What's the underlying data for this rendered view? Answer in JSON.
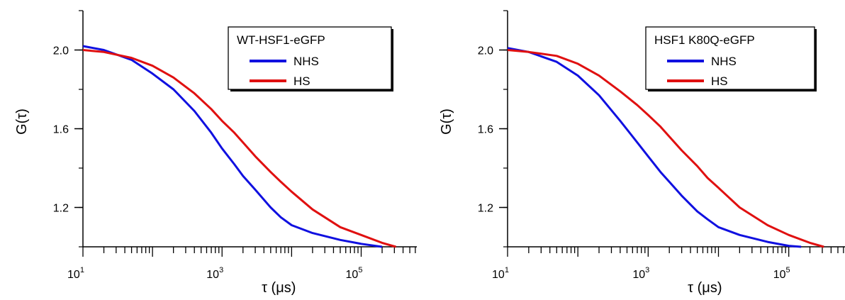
{
  "chart_data": [
    {
      "type": "line",
      "xscale": "log",
      "ylabel": "G(τ)",
      "xlabel": "τ (μs)",
      "xlim": [
        10,
        631000
      ],
      "ylim": [
        1.0,
        2.2
      ],
      "yticks": [
        1.2,
        1.6,
        2.0
      ],
      "xticks": [
        10,
        1000,
        100000
      ],
      "xtick_labels": [
        {
          "base": "10",
          "exp": "1"
        },
        {
          "base": "10",
          "exp": "3"
        },
        {
          "base": "10",
          "exp": "5"
        }
      ],
      "legend": {
        "title": "WT-HSF1-eGFP",
        "position": "top-right"
      },
      "series": [
        {
          "name": "NHS",
          "color": "#1010e0",
          "x": [
            10,
            20,
            50,
            100,
            200,
            400,
            700,
            1000,
            1500,
            2000,
            3000,
            5000,
            7000,
            10000,
            20000,
            50000,
            100000,
            200000
          ],
          "y": [
            2.02,
            2.0,
            1.95,
            1.88,
            1.8,
            1.69,
            1.58,
            1.5,
            1.42,
            1.36,
            1.29,
            1.2,
            1.15,
            1.11,
            1.07,
            1.035,
            1.015,
            1.0
          ]
        },
        {
          "name": "HS",
          "color": "#e01010",
          "x": [
            10,
            20,
            50,
            100,
            200,
            400,
            700,
            1000,
            1500,
            2000,
            3000,
            5000,
            7000,
            10000,
            20000,
            50000,
            100000,
            200000,
            316000
          ],
          "y": [
            2.0,
            1.99,
            1.96,
            1.92,
            1.86,
            1.78,
            1.7,
            1.64,
            1.58,
            1.53,
            1.46,
            1.38,
            1.33,
            1.28,
            1.19,
            1.1,
            1.06,
            1.02,
            1.0
          ]
        }
      ]
    },
    {
      "type": "line",
      "xscale": "log",
      "ylabel": "G(τ)",
      "xlabel": "τ (μs)",
      "xlim": [
        10,
        631000
      ],
      "ylim": [
        1.0,
        2.2
      ],
      "yticks": [
        1.2,
        1.6,
        2.0
      ],
      "xticks": [
        10,
        1000,
        100000
      ],
      "xtick_labels": [
        {
          "base": "10",
          "exp": "1"
        },
        {
          "base": "10",
          "exp": "3"
        },
        {
          "base": "10",
          "exp": "5"
        }
      ],
      "legend": {
        "title": "HSF1 K80Q-eGFP",
        "position": "top-right"
      },
      "series": [
        {
          "name": "NHS",
          "color": "#1010e0",
          "x": [
            10,
            20,
            50,
            100,
            200,
            400,
            700,
            1000,
            1500,
            2000,
            3000,
            5000,
            7000,
            10000,
            20000,
            50000,
            100000,
            150000
          ],
          "y": [
            2.01,
            1.99,
            1.94,
            1.87,
            1.77,
            1.64,
            1.53,
            1.46,
            1.38,
            1.33,
            1.26,
            1.18,
            1.14,
            1.1,
            1.06,
            1.025,
            1.005,
            1.0
          ]
        },
        {
          "name": "HS",
          "color": "#e01010",
          "x": [
            10,
            20,
            50,
            100,
            200,
            400,
            700,
            1000,
            1500,
            2000,
            3000,
            5000,
            7000,
            10000,
            20000,
            50000,
            100000,
            200000,
            316000
          ],
          "y": [
            2.0,
            1.99,
            1.97,
            1.93,
            1.87,
            1.79,
            1.72,
            1.67,
            1.61,
            1.56,
            1.49,
            1.41,
            1.35,
            1.3,
            1.2,
            1.11,
            1.06,
            1.02,
            1.0
          ]
        }
      ]
    }
  ]
}
